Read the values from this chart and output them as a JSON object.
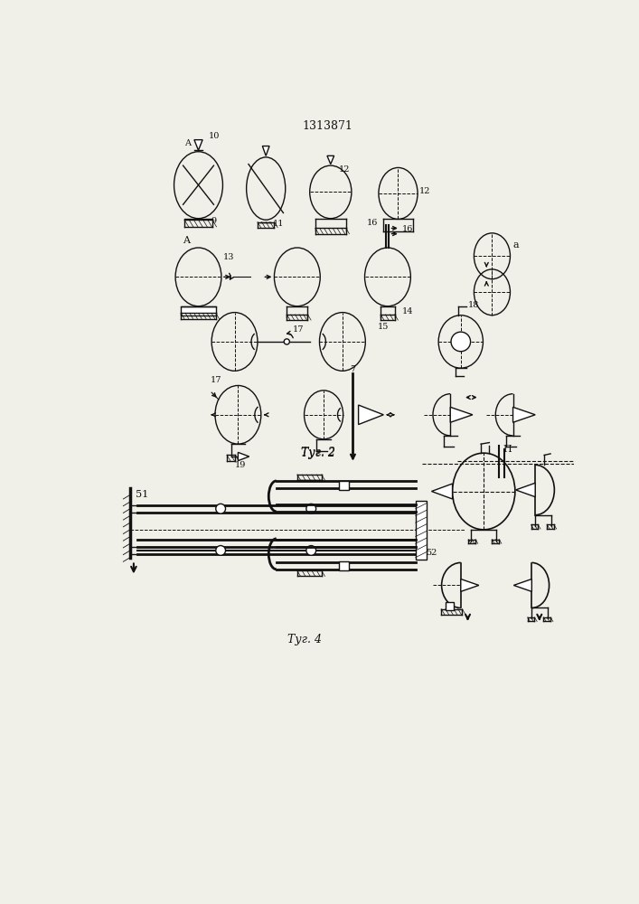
{
  "title": "1313871",
  "fig2_label": "Τуг. 2",
  "fig4_label": "Τуг. 4",
  "bg_color": "#f0efe8",
  "line_color": "#111111",
  "lw": 1.0
}
